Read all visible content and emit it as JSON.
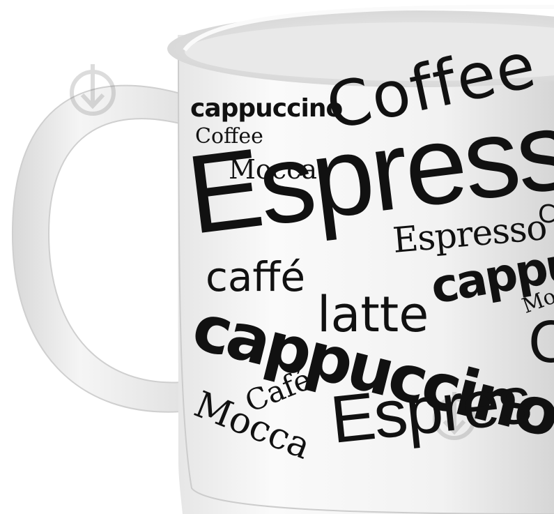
{
  "product": {
    "name": "coffee-words-mug",
    "colors": {
      "mug_body": "#f4f4f4",
      "mug_shadow": "#d9d9d9",
      "print": "#111111"
    }
  },
  "mug_print": {
    "words": [
      "cappuccino",
      "Coffee",
      "Coffee",
      "Mocca",
      "Espress",
      "Espresso",
      "caffé",
      "latte",
      "cappu",
      "cappuccino",
      "C",
      "Mo",
      "Mocca",
      "Café",
      "Espres",
      "C"
    ]
  },
  "watermark": {
    "icon": "shop-watermark-icon"
  }
}
